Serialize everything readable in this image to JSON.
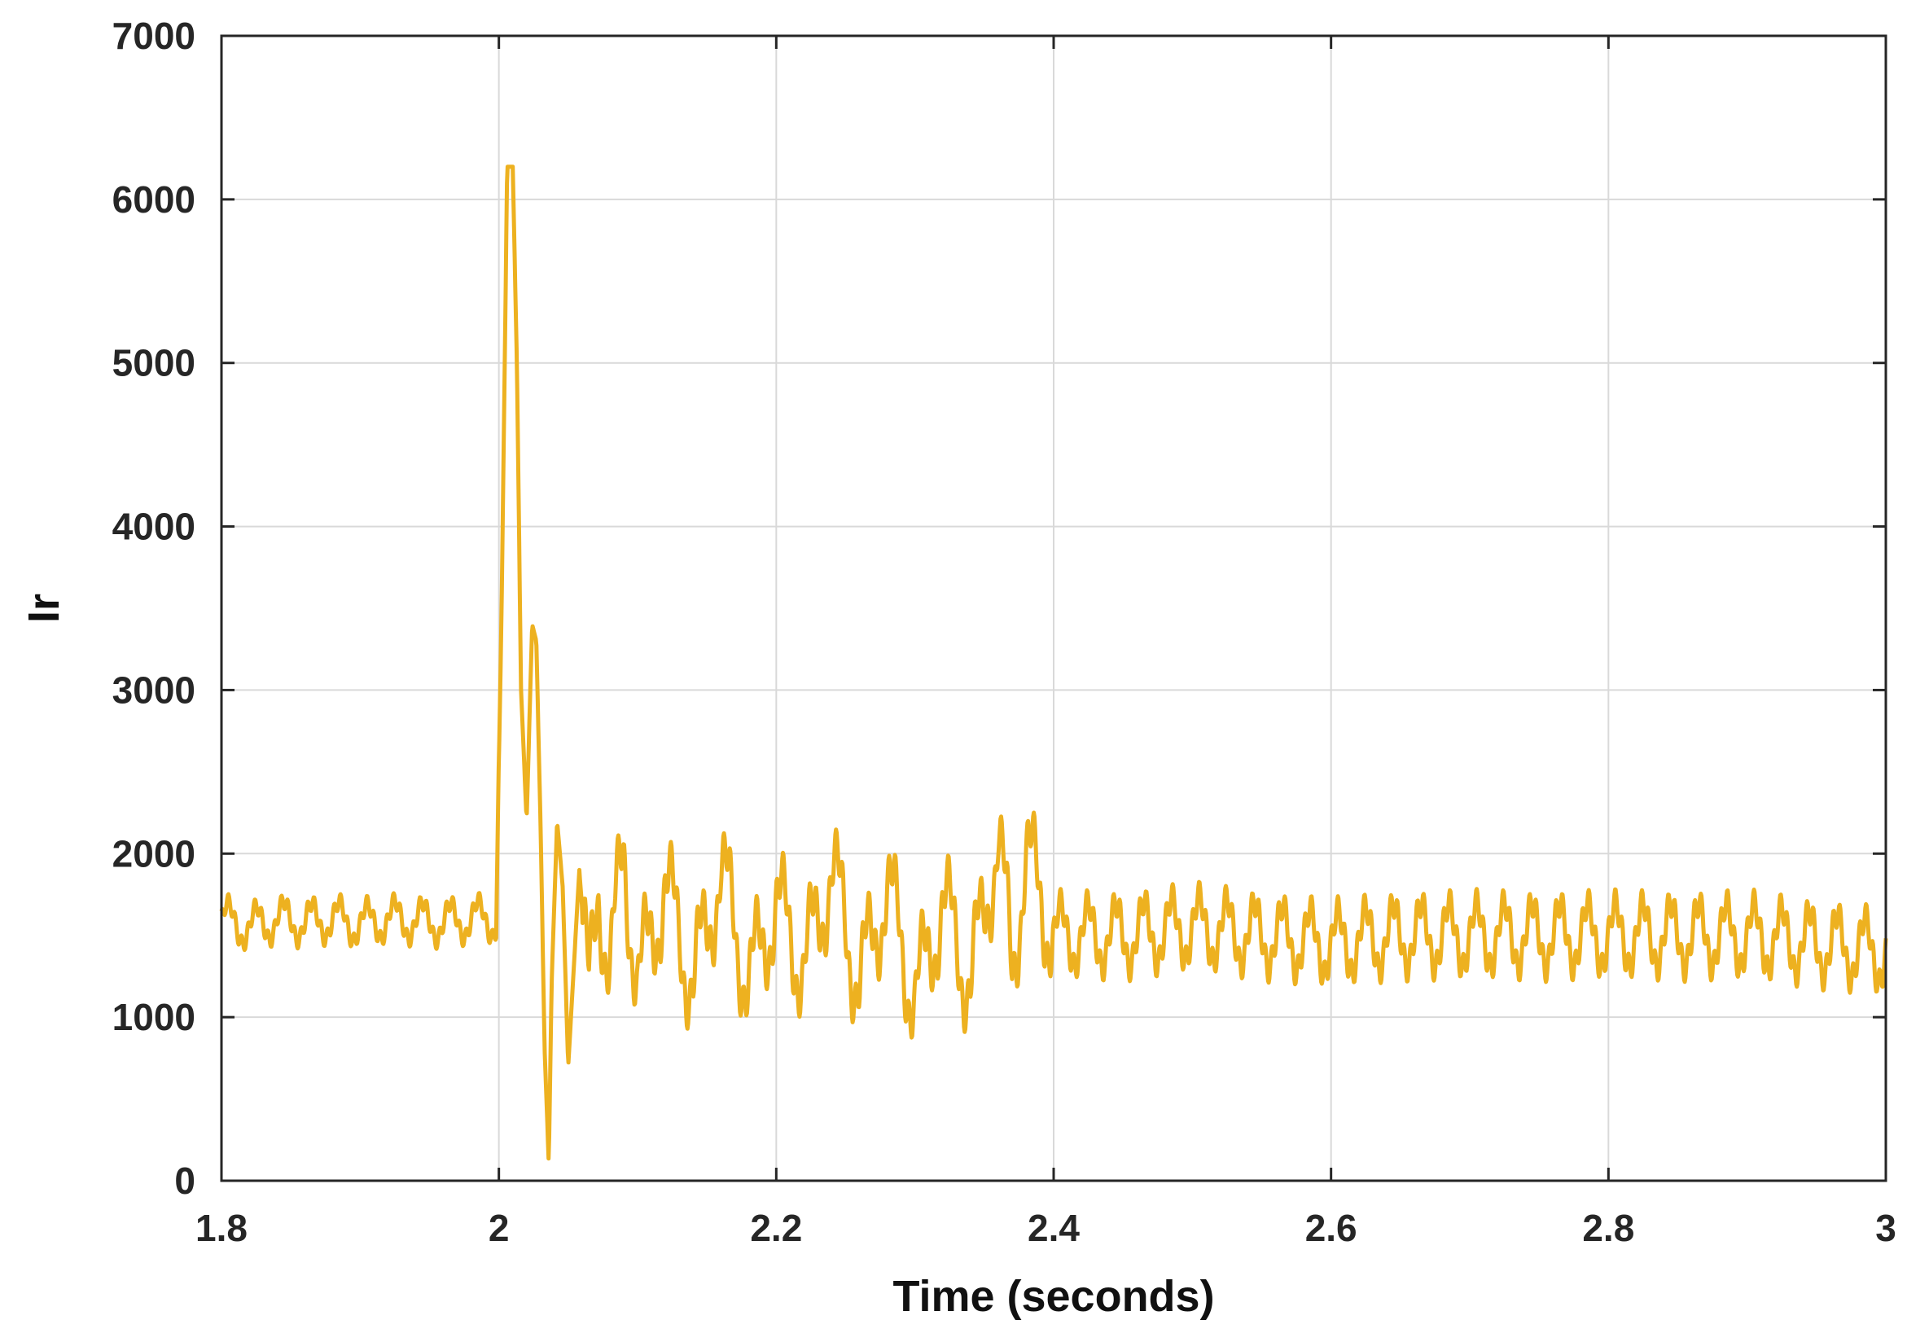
{
  "chart_data": {
    "type": "line",
    "title": "",
    "xlabel": "Time (seconds)",
    "ylabel": "Ir",
    "xlim": [
      1.8,
      3.0
    ],
    "ylim": [
      0,
      7000
    ],
    "xticks": [
      1.8,
      2.0,
      2.2,
      2.4,
      2.6,
      2.8,
      3.0
    ],
    "xtick_labels": [
      "1.8",
      "2",
      "2.2",
      "2.4",
      "2.6",
      "2.8",
      "3"
    ],
    "yticks": [
      0,
      1000,
      2000,
      3000,
      4000,
      5000,
      6000,
      7000
    ],
    "ytick_labels": [
      "0",
      "1000",
      "2000",
      "3000",
      "4000",
      "5000",
      "6000",
      "7000"
    ],
    "grid": true,
    "series": [
      {
        "color": "#EDB120",
        "x": [
          1.8,
          1.82,
          1.84,
          1.86,
          1.88,
          1.9,
          1.92,
          1.94,
          1.96,
          1.98,
          1.998,
          2.002,
          2.006,
          2.01,
          2.013,
          2.016,
          2.02,
          2.024,
          2.027,
          2.03,
          2.033,
          2.036,
          2.038,
          2.042,
          2.046,
          2.05,
          2.054,
          2.058,
          2.065,
          2.072,
          2.08,
          2.09,
          2.1,
          2.12,
          2.14,
          2.16,
          2.18,
          2.2,
          2.22,
          2.24,
          2.26,
          2.28,
          2.3,
          2.32,
          2.34,
          2.36,
          2.37,
          2.38,
          2.4,
          2.45,
          2.5,
          2.55,
          2.6,
          2.65,
          2.7,
          2.75,
          2.8,
          2.85,
          2.9,
          2.95,
          3.0
        ],
        "y": [
          1600,
          1550,
          1600,
          1580,
          1600,
          1570,
          1600,
          1590,
          1580,
          1600,
          1600,
          3500,
          6200,
          6200,
          5000,
          3000,
          2200,
          3400,
          3300,
          2200,
          800,
          100,
          1200,
          2200,
          1800,
          700,
          1300,
          1900,
          1100,
          1800,
          1300,
          2000,
          1200,
          1800,
          1200,
          1900,
          1200,
          1700,
          1300,
          1900,
          1200,
          1800,
          1100,
          1700,
          1200,
          2100,
          1300,
          2000,
          1500,
          1500,
          1550,
          1500,
          1450,
          1500,
          1500,
          1500,
          1500,
          1500,
          1500,
          1450,
          1400
        ],
        "noise_amplitude": 300
      }
    ]
  }
}
